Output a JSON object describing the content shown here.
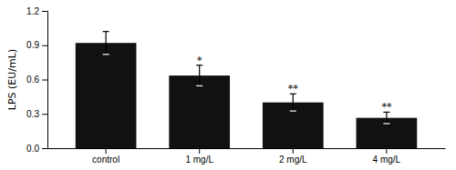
{
  "chart_data": {
    "type": "bar",
    "categories": [
      "control",
      "1 mg/L",
      "2 mg/L",
      "4 mg/L"
    ],
    "values": [
      0.92,
      0.635,
      0.4,
      0.265
    ],
    "errors": [
      0.1,
      0.09,
      0.075,
      0.05
    ],
    "annotations": [
      null,
      "*",
      "**",
      "**"
    ],
    "color": "#111111",
    "ylabel": "LPS (EU/mL)",
    "ylim": [
      0,
      1.2
    ],
    "yticks": [
      {
        "value": 0,
        "label": "0.0"
      },
      0.3,
      0.6,
      0.9,
      1.2
    ],
    "grid": false
  }
}
